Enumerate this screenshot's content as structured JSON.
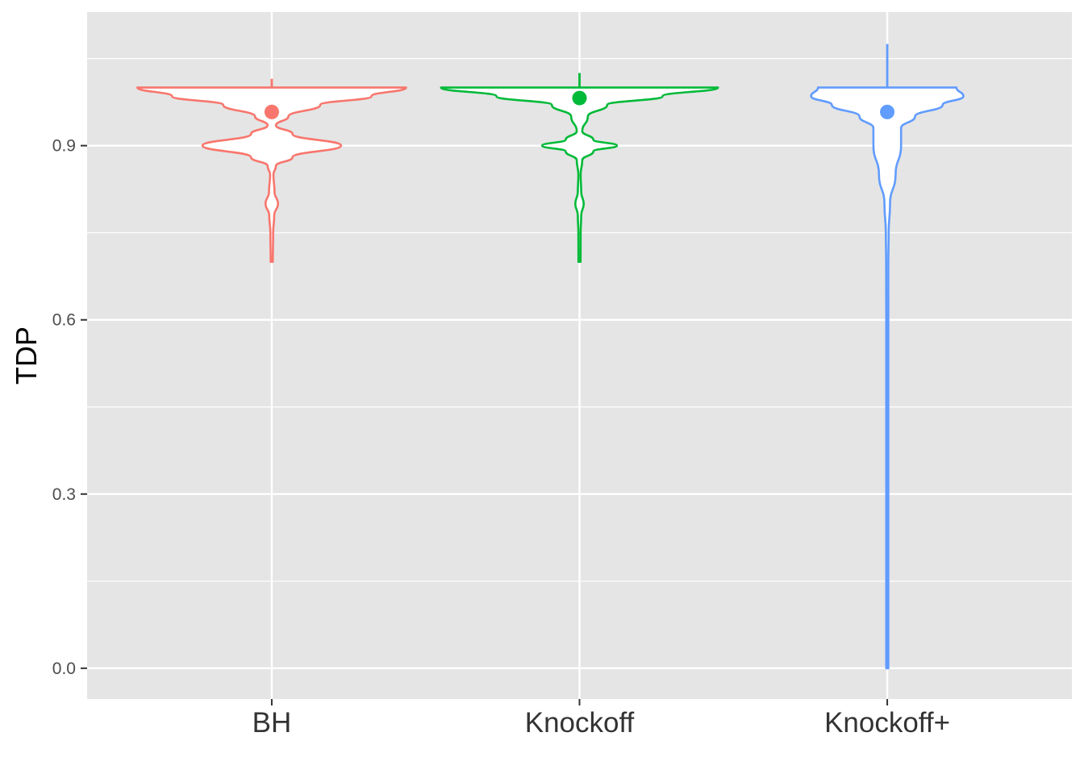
{
  "chart_data": {
    "type": "violin",
    "title": "",
    "xlabel": "",
    "ylabel": "TDP",
    "ylim": [
      -0.053,
      1.13
    ],
    "y_ticks": [
      "0.0",
      "0.3",
      "0.6",
      "0.9"
    ],
    "y_tick_values": [
      0.0,
      0.3,
      0.6,
      0.9
    ],
    "y_minor_ticks": [
      0.15,
      0.45,
      0.75,
      1.05
    ],
    "grid": true,
    "legend": "none",
    "panel_color": "#e5e5e5",
    "categories": [
      "BH",
      "Knockoff",
      "Knockoff+"
    ],
    "series": [
      {
        "category": "BH",
        "color": "#f8766d",
        "mean": 0.958,
        "range": [
          0.7,
          1.0
        ],
        "whisker_top": 1.015,
        "density_profile": [
          [
            0.7,
            0.005
          ],
          [
            0.75,
            0.01
          ],
          [
            0.78,
            0.018
          ],
          [
            0.8,
            0.045
          ],
          [
            0.82,
            0.02
          ],
          [
            0.85,
            0.012
          ],
          [
            0.865,
            0.03
          ],
          [
            0.88,
            0.15
          ],
          [
            0.9,
            0.5
          ],
          [
            0.92,
            0.15
          ],
          [
            0.935,
            0.03
          ],
          [
            0.95,
            0.12
          ],
          [
            0.97,
            0.35
          ],
          [
            0.985,
            0.72
          ],
          [
            1.0,
            0.97
          ]
        ]
      },
      {
        "category": "Knockoff",
        "color": "#00ba38",
        "mean": 0.982,
        "range": [
          0.7,
          1.0
        ],
        "whisker_top": 1.025,
        "density_profile": [
          [
            0.7,
            0.004
          ],
          [
            0.75,
            0.008
          ],
          [
            0.78,
            0.012
          ],
          [
            0.8,
            0.03
          ],
          [
            0.82,
            0.012
          ],
          [
            0.85,
            0.008
          ],
          [
            0.875,
            0.02
          ],
          [
            0.89,
            0.1
          ],
          [
            0.9,
            0.27
          ],
          [
            0.91,
            0.1
          ],
          [
            0.925,
            0.02
          ],
          [
            0.95,
            0.06
          ],
          [
            0.97,
            0.2
          ],
          [
            0.985,
            0.6
          ],
          [
            1.0,
            1.0
          ]
        ]
      },
      {
        "category": "Knockoff+",
        "color": "#619cff",
        "mean": 0.958,
        "range": [
          0.0,
          1.0
        ],
        "whisker_top": 1.075,
        "density_profile": [
          [
            0.0,
            0.0
          ],
          [
            0.2,
            0.001
          ],
          [
            0.4,
            0.001
          ],
          [
            0.5,
            0.003
          ],
          [
            0.6,
            0.006
          ],
          [
            0.7,
            0.008
          ],
          [
            0.75,
            0.01
          ],
          [
            0.8,
            0.02
          ],
          [
            0.85,
            0.06
          ],
          [
            0.9,
            0.1
          ],
          [
            0.93,
            0.1
          ],
          [
            0.95,
            0.2
          ],
          [
            0.97,
            0.4
          ],
          [
            0.985,
            0.55
          ],
          [
            1.0,
            0.5
          ]
        ]
      }
    ]
  }
}
